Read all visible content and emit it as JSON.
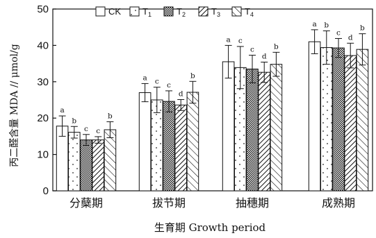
{
  "chart_data": {
    "type": "bar",
    "xlabel": "生育期 Growth period",
    "ylabel": "丙二醛含量 MDA // μmol/g",
    "ylim": [
      0,
      50
    ],
    "yticks": [
      0,
      10,
      20,
      30,
      40,
      50
    ],
    "categories": [
      "分蘖期",
      "拔节期",
      "抽穗期",
      "成熟期"
    ],
    "series": [
      {
        "name": "CK",
        "pattern": "blank",
        "values": [
          17.8,
          27.0,
          35.5,
          41.0
        ],
        "errors": [
          2.8,
          2.5,
          4.5,
          3.3
        ],
        "letters": [
          "a",
          "a",
          "a",
          "a"
        ]
      },
      {
        "name": "T1",
        "pattern": "dots",
        "values": [
          16.1,
          25.0,
          33.9,
          39.4
        ],
        "errors": [
          1.6,
          3.5,
          5.8,
          4.6
        ],
        "letters": [
          "b",
          "c",
          "c",
          "b"
        ]
      },
      {
        "name": "T2",
        "pattern": "checker",
        "values": [
          14.0,
          24.6,
          33.5,
          39.3
        ],
        "errors": [
          1.5,
          2.9,
          3.8,
          2.6
        ],
        "letters": [
          "c",
          "c",
          "c",
          "c"
        ]
      },
      {
        "name": "T3",
        "pattern": "back-diagonal",
        "values": [
          14.0,
          23.6,
          32.6,
          37.2
        ],
        "errors": [
          0.9,
          1.5,
          2.8,
          3.4
        ],
        "letters": [
          "c",
          "d",
          "d",
          "d"
        ]
      },
      {
        "name": "T4",
        "pattern": "forward-diagonal",
        "values": [
          16.8,
          27.1,
          34.8,
          38.9
        ],
        "errors": [
          2.2,
          3.0,
          3.3,
          4.3
        ],
        "letters": [
          "b",
          "b",
          "b",
          "b"
        ]
      }
    ],
    "legend": {
      "position": "top-left",
      "labels": [
        "CK",
        "T1",
        "T2",
        "T3",
        "T4"
      ]
    }
  }
}
